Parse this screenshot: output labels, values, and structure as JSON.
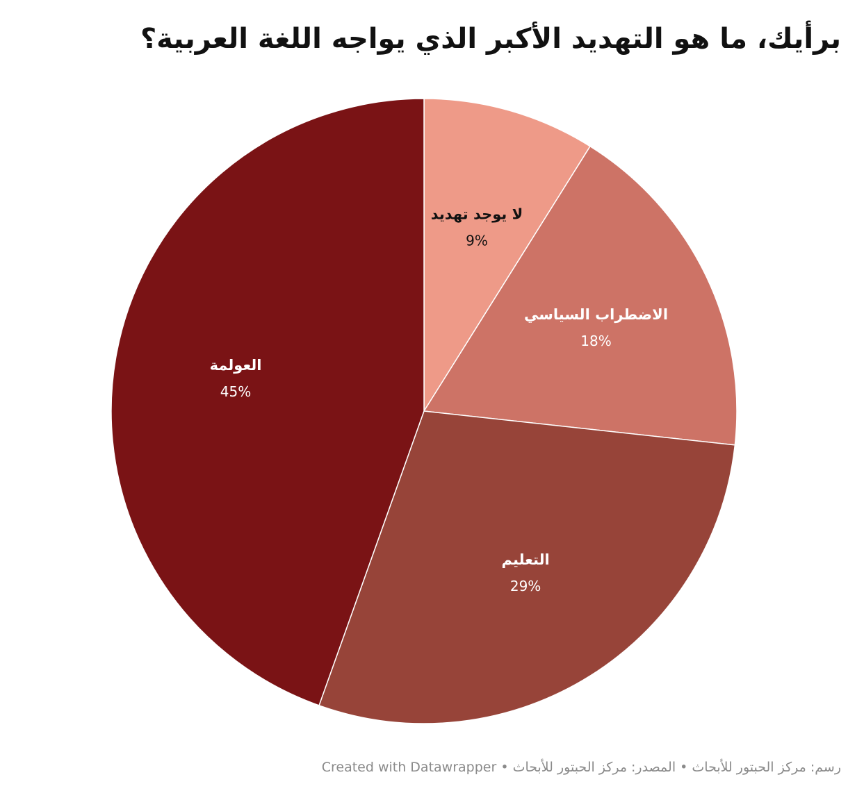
{
  "title": "برأيك، ما هو التهديد الأكبر الذي يواجه اللغة العربية؟",
  "footer": "رسم: مركز الحبتور للأبحاث • المصدر: مركز الحبتور للأبحاث • Created with Datawrapper",
  "chart_data": {
    "type": "pie",
    "title": "برأيك، ما هو التهديد الأكبر الذي يواجه اللغة العربية؟",
    "direction": "clockwise-from-top",
    "slices": [
      {
        "label": "لا يوجد تهديد",
        "value": 9,
        "display": "9%",
        "color": "#ee9a88",
        "text_color": "#111111"
      },
      {
        "label": "الاضطراب السياسي",
        "value": 18,
        "display": "18%",
        "color": "#cd7366",
        "text_color": "#ffffff"
      },
      {
        "label": "التعليم",
        "value": 29,
        "display": "29%",
        "color": "#974439",
        "text_color": "#ffffff"
      },
      {
        "label": "العولمة",
        "value": 45,
        "display": "45%",
        "color": "#7a1315",
        "text_color": "#ffffff"
      }
    ]
  }
}
